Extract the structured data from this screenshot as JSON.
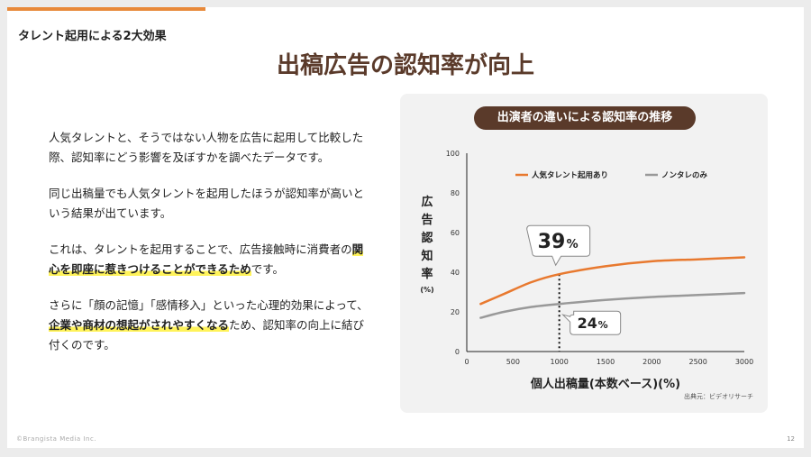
{
  "header": {
    "section_label": "タレント起用による2大効果",
    "title": "出稿広告の認知率が向上"
  },
  "body": {
    "p1": "人気タレントと、そうではない人物を広告に起用して比較した際、認知率にどう影響を及ぼすかを調べたデータです。",
    "p2": "同じ出稿量でも人気タレントを起用したほうが認知率が高いという結果が出ています。",
    "p3_a": "これは、タレントを起用することで、広告接触時に消費者の",
    "p3_hl": "関心を即座に惹きつけることができるため",
    "p3_b": "です。",
    "p4_a": "さらに「顔の記憶」「感情移入」といった心理的効果によって、",
    "p4_hl": "企業や商材の想起がされやすくなる",
    "p4_b": "ため、認知率の向上に結び付くのです。"
  },
  "chart_panel": {
    "title": "出演者の違いによる認知率の推移",
    "source": "出典元：ビデオリサーチ"
  },
  "chart_data": {
    "type": "line",
    "xlabel": "個人出稿量(本数ベース)(%)",
    "ylabel": "広告認知率",
    "ylabel_unit": "(%)",
    "xlim": [
      0,
      3000
    ],
    "ylim": [
      0,
      100
    ],
    "x_ticks": [
      0,
      500,
      1000,
      1500,
      2000,
      2500,
      3000
    ],
    "y_ticks": [
      0,
      20,
      40,
      60,
      80,
      100
    ],
    "legend_position": "top",
    "series": [
      {
        "name": "人気タレント起用あり",
        "color": "#e8792f",
        "x": [
          150,
          400,
          700,
          1000,
          1500,
          2000,
          2500,
          3000
        ],
        "values": [
          24,
          29,
          35,
          39,
          43,
          45.5,
          46.5,
          47.5
        ]
      },
      {
        "name": "ノンタレのみ",
        "color": "#999999",
        "x": [
          150,
          400,
          700,
          1000,
          1500,
          2000,
          2500,
          3000
        ],
        "values": [
          17,
          20,
          22.5,
          24,
          26,
          27.5,
          28.5,
          29.5
        ]
      }
    ],
    "annotations": [
      {
        "label_num": "39",
        "label_unit": "%",
        "x": 1000,
        "y": 39
      },
      {
        "label_num": "24",
        "label_unit": "%",
        "x": 1000,
        "y": 24
      }
    ]
  },
  "footer": {
    "copyright": "©Brangista Media Inc.",
    "page": "12"
  }
}
